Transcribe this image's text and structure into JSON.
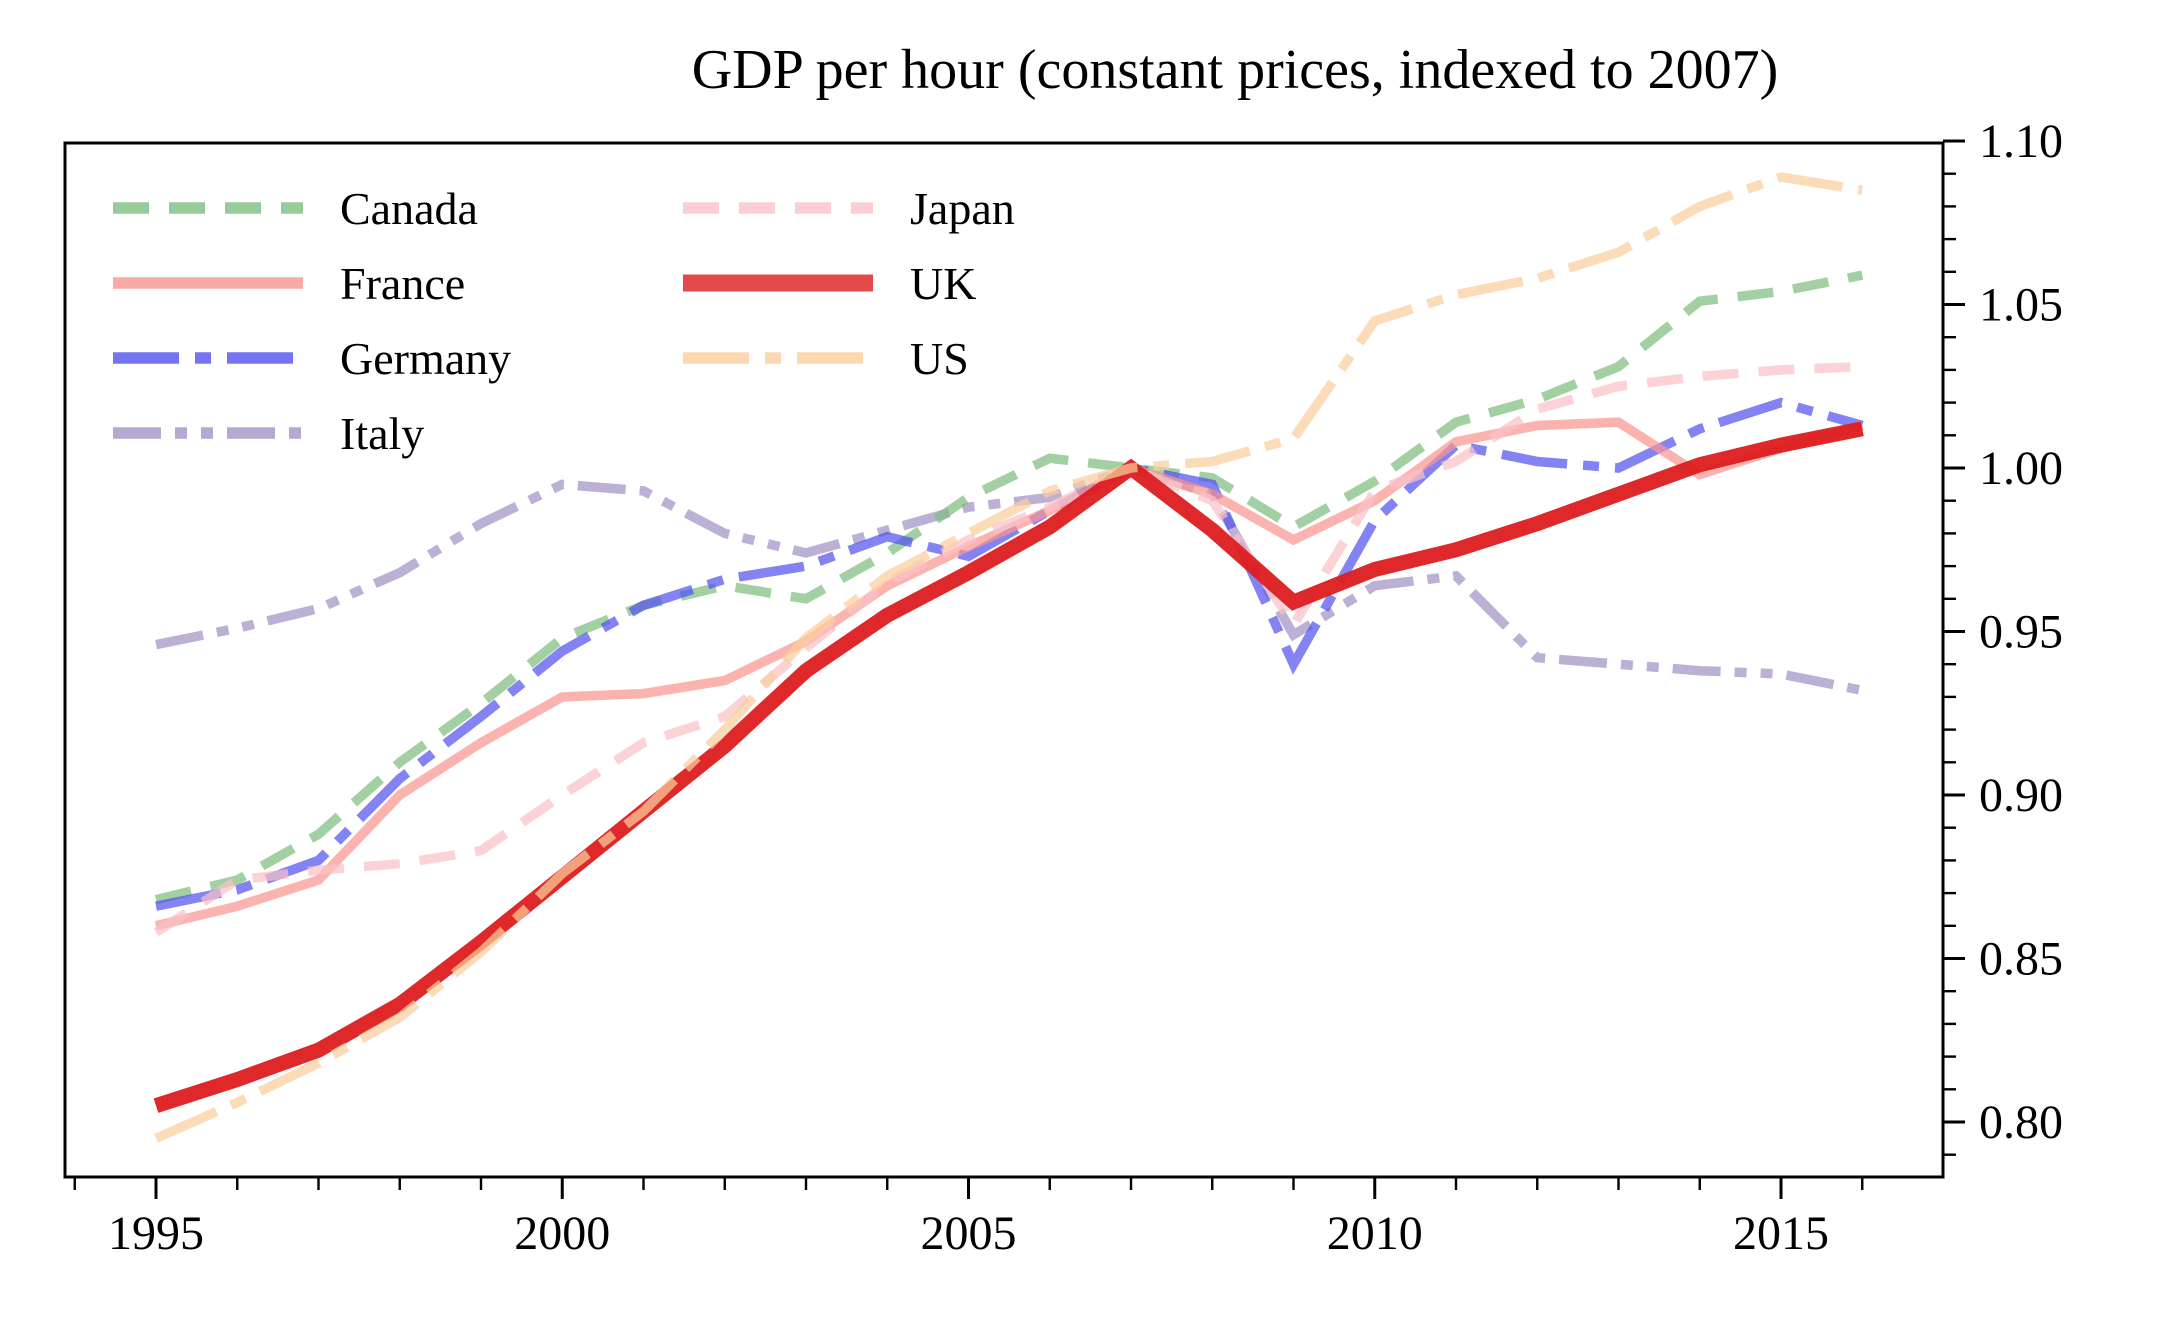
{
  "title": "GDP per hour (constant prices, indexed to 2007)",
  "colors": {
    "canada": "#7fbe7f",
    "france": "#f99590",
    "germany": "#5353ef",
    "italy": "#a292c5",
    "japan": "#f9c2c7",
    "uk": "#dd1c1f",
    "us": "#fbce9d",
    "axis": "#000000"
  },
  "legend": {
    "column1": [
      "Canada",
      "France",
      "Germany",
      "Italy"
    ],
    "column2": [
      "Japan",
      "UK",
      "US"
    ]
  },
  "chart_data": {
    "type": "line",
    "title": "GDP per hour (constant prices, indexed to 2007)",
    "xlabel": "",
    "ylabel": "",
    "xlim": [
      1993.9,
      2017.0
    ],
    "ylim": [
      0.775,
      1.107
    ],
    "grid": false,
    "legend_position": "upper-left, 2 columns, no frame",
    "x_ticks_major": [
      1995,
      2000,
      2005,
      2010,
      2015
    ],
    "x_tick_labels": [
      "1995",
      "2000",
      "2005",
      "2010",
      "2015"
    ],
    "x_ticks_minor_every": 1,
    "y_ticks_major": [
      0.8,
      0.85,
      0.9,
      0.95,
      1.0,
      1.05,
      1.1
    ],
    "y_tick_labels": [
      "0.80",
      "0.85",
      "0.90",
      "0.95",
      "1.00",
      "1.05",
      "1.10"
    ],
    "y_ticks_minor_every": 0.01,
    "y_axis_side": "right",
    "x": [
      1995,
      1996,
      1997,
      1998,
      1999,
      2000,
      2001,
      2002,
      2003,
      2004,
      2005,
      2006,
      2007,
      2008,
      2009,
      2010,
      2011,
      2012,
      2013,
      2014,
      2015,
      2016
    ],
    "series": [
      {
        "name": "Canada",
        "color_key": "canada",
        "linestyle": "dashed",
        "linewidth": 9.5,
        "values": [
          0.868,
          0.874,
          0.888,
          0.91,
          0.928,
          0.948,
          0.958,
          0.964,
          0.96,
          0.974,
          0.991,
          1.003,
          1.0,
          0.997,
          0.982,
          0.996,
          1.014,
          1.021,
          1.031,
          1.051,
          1.054,
          1.059
        ]
      },
      {
        "name": "France",
        "color_key": "france",
        "linestyle": "solid",
        "linewidth": 9.5,
        "values": [
          0.86,
          0.866,
          0.874,
          0.9,
          0.916,
          0.93,
          0.931,
          0.935,
          0.947,
          0.964,
          0.976,
          0.987,
          1.0,
          0.992,
          0.978,
          0.99,
          1.008,
          1.013,
          1.014,
          0.998,
          1.006,
          1.013
        ]
      },
      {
        "name": "Germany",
        "color_key": "germany",
        "linestyle": "dashdot",
        "linewidth": 9.5,
        "values": [
          0.866,
          0.871,
          0.88,
          0.905,
          0.924,
          0.944,
          0.958,
          0.966,
          0.97,
          0.979,
          0.973,
          0.987,
          1.0,
          0.995,
          0.94,
          0.984,
          1.007,
          1.002,
          1.0,
          1.012,
          1.02,
          1.013
        ]
      },
      {
        "name": "Italy",
        "color_key": "italy",
        "linestyle": "dashdotdot",
        "linewidth": 9.5,
        "values": [
          0.946,
          0.951,
          0.957,
          0.968,
          0.983,
          0.995,
          0.993,
          0.98,
          0.974,
          0.981,
          0.988,
          0.991,
          1.0,
          0.992,
          0.949,
          0.964,
          0.967,
          0.942,
          0.94,
          0.938,
          0.937,
          0.932
        ]
      },
      {
        "name": "Japan",
        "color_key": "japan",
        "linestyle": "dashed",
        "linewidth": 9.5,
        "values": [
          0.858,
          0.874,
          0.877,
          0.879,
          0.883,
          0.9,
          0.916,
          0.924,
          0.945,
          0.965,
          0.978,
          0.988,
          1.0,
          0.99,
          0.952,
          0.993,
          1.002,
          1.018,
          1.025,
          1.028,
          1.03,
          1.031
        ]
      },
      {
        "name": "UK",
        "color_key": "uk",
        "linestyle": "solid",
        "linewidth": 15,
        "values": [
          0.805,
          0.813,
          0.822,
          0.836,
          0.855,
          0.875,
          0.895,
          0.915,
          0.938,
          0.955,
          0.968,
          0.982,
          1.0,
          0.981,
          0.959,
          0.969,
          0.975,
          0.983,
          0.992,
          1.001,
          1.007,
          1.012
        ]
      },
      {
        "name": "US",
        "color_key": "us",
        "linestyle": "dashdot",
        "linewidth": 9.5,
        "values": [
          0.795,
          0.806,
          0.818,
          0.832,
          0.852,
          0.876,
          0.895,
          0.92,
          0.948,
          0.967,
          0.98,
          0.993,
          1.0,
          1.002,
          1.009,
          1.045,
          1.053,
          1.058,
          1.066,
          1.08,
          1.089,
          1.085
        ]
      }
    ]
  }
}
